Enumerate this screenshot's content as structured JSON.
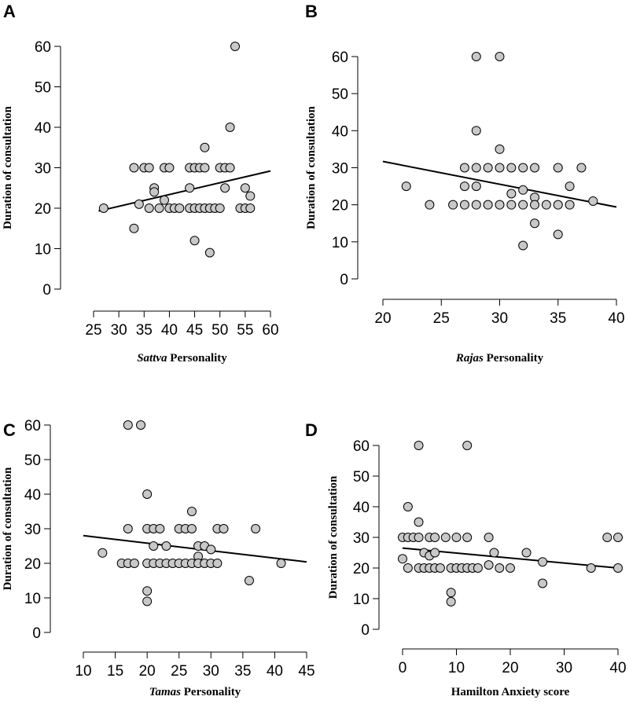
{
  "chart_data": [
    {
      "type": "scatter",
      "panel": "A",
      "xlabel_em": "Sattva",
      "xlabel_rest": " Personality",
      "ylabel": "Duration of consultation",
      "xlim": [
        25,
        60
      ],
      "ylim": [
        0,
        60
      ],
      "xticks": [
        25,
        30,
        35,
        40,
        45,
        50,
        55,
        60
      ],
      "yticks": [
        0,
        10,
        20,
        30,
        40,
        50,
        60
      ],
      "trend": [
        [
          26,
          19.3
        ],
        [
          60,
          29.2
        ]
      ],
      "points": [
        [
          27,
          20
        ],
        [
          33,
          30
        ],
        [
          33,
          15
        ],
        [
          34,
          21
        ],
        [
          35,
          30
        ],
        [
          36,
          30
        ],
        [
          36,
          20
        ],
        [
          37,
          25
        ],
        [
          37,
          24
        ],
        [
          38,
          20
        ],
        [
          39,
          30
        ],
        [
          39,
          22
        ],
        [
          40,
          30
        ],
        [
          40,
          20
        ],
        [
          41,
          20
        ],
        [
          42,
          20
        ],
        [
          44,
          25
        ],
        [
          44,
          20
        ],
        [
          44,
          30
        ],
        [
          45,
          30
        ],
        [
          45,
          20
        ],
        [
          45,
          12
        ],
        [
          46,
          30
        ],
        [
          46,
          20
        ],
        [
          47,
          35
        ],
        [
          47,
          30
        ],
        [
          47,
          20
        ],
        [
          48,
          20
        ],
        [
          48,
          9
        ],
        [
          49,
          20
        ],
        [
          50,
          30
        ],
        [
          50,
          20
        ],
        [
          51,
          30
        ],
        [
          51,
          25
        ],
        [
          52,
          40
        ],
        [
          52,
          30
        ],
        [
          53,
          60
        ],
        [
          54,
          20
        ],
        [
          55,
          25
        ],
        [
          55,
          20
        ],
        [
          56,
          23
        ],
        [
          56,
          20
        ]
      ]
    },
    {
      "type": "scatter",
      "panel": "B",
      "xlabel_em": "Rajas",
      "xlabel_rest": " Personality",
      "ylabel": "Duration of consultation",
      "xlim": [
        20,
        40
      ],
      "ylim": [
        0,
        60
      ],
      "xticks": [
        20,
        25,
        30,
        35,
        40
      ],
      "yticks": [
        0,
        10,
        20,
        30,
        40,
        50,
        60
      ],
      "trend": [
        [
          20,
          31.7
        ],
        [
          40,
          19.4
        ]
      ],
      "points": [
        [
          22,
          25
        ],
        [
          24,
          20
        ],
        [
          26,
          20
        ],
        [
          27,
          30
        ],
        [
          27,
          25
        ],
        [
          27,
          20
        ],
        [
          28,
          60
        ],
        [
          28,
          40
        ],
        [
          28,
          30
        ],
        [
          28,
          25
        ],
        [
          28,
          20
        ],
        [
          29,
          30
        ],
        [
          29,
          20
        ],
        [
          30,
          60
        ],
        [
          30,
          35
        ],
        [
          30,
          30
        ],
        [
          30,
          20
        ],
        [
          31,
          30
        ],
        [
          31,
          23
        ],
        [
          31,
          20
        ],
        [
          32,
          30
        ],
        [
          32,
          24
        ],
        [
          32,
          20
        ],
        [
          32,
          9
        ],
        [
          33,
          30
        ],
        [
          33,
          22
        ],
        [
          33,
          20
        ],
        [
          33,
          15
        ],
        [
          34,
          20
        ],
        [
          35,
          30
        ],
        [
          35,
          20
        ],
        [
          35,
          12
        ],
        [
          36,
          25
        ],
        [
          36,
          20
        ],
        [
          37,
          30
        ],
        [
          38,
          21
        ]
      ]
    },
    {
      "type": "scatter",
      "panel": "C",
      "xlabel_em": "Tamas",
      "xlabel_rest": " Personality",
      "ylabel": "Duration of consultation",
      "xlim": [
        10,
        45
      ],
      "ylim": [
        0,
        60
      ],
      "xticks": [
        10,
        15,
        20,
        25,
        30,
        35,
        40,
        45
      ],
      "yticks": [
        0,
        10,
        20,
        30,
        40,
        50,
        60
      ],
      "trend": [
        [
          10,
          28.0
        ],
        [
          45,
          20.4
        ]
      ],
      "points": [
        [
          13,
          23
        ],
        [
          16,
          20
        ],
        [
          17,
          60
        ],
        [
          17,
          30
        ],
        [
          17,
          20
        ],
        [
          18,
          20
        ],
        [
          19,
          60
        ],
        [
          20,
          40
        ],
        [
          20,
          30
        ],
        [
          20,
          20
        ],
        [
          20,
          12
        ],
        [
          20,
          9
        ],
        [
          21,
          30
        ],
        [
          21,
          25
        ],
        [
          21,
          20
        ],
        [
          22,
          30
        ],
        [
          22,
          20
        ],
        [
          23,
          25
        ],
        [
          23,
          20
        ],
        [
          24,
          20
        ],
        [
          25,
          30
        ],
        [
          25,
          20
        ],
        [
          26,
          30
        ],
        [
          26,
          20
        ],
        [
          27,
          35
        ],
        [
          27,
          30
        ],
        [
          27,
          20
        ],
        [
          28,
          25
        ],
        [
          28,
          22
        ],
        [
          28,
          20
        ],
        [
          29,
          25
        ],
        [
          29,
          20
        ],
        [
          30,
          24
        ],
        [
          30,
          20
        ],
        [
          31,
          30
        ],
        [
          31,
          20
        ],
        [
          32,
          30
        ],
        [
          36,
          15
        ],
        [
          37,
          30
        ],
        [
          41,
          20
        ]
      ]
    },
    {
      "type": "scatter",
      "panel": "D",
      "xlabel_em": "",
      "xlabel_rest": "Hamilton Anxiety score",
      "ylabel": "Duration of consultation",
      "xlim": [
        0,
        40
      ],
      "ylim": [
        0,
        60
      ],
      "xticks": [
        0,
        10,
        20,
        30,
        40
      ],
      "yticks": [
        0,
        10,
        20,
        30,
        40,
        50,
        60
      ],
      "trend": [
        [
          0,
          26.5
        ],
        [
          40,
          20.0
        ]
      ],
      "points": [
        [
          0,
          30
        ],
        [
          0,
          23
        ],
        [
          1,
          40
        ],
        [
          1,
          30
        ],
        [
          1,
          20
        ],
        [
          2,
          30
        ],
        [
          3,
          60
        ],
        [
          3,
          35
        ],
        [
          3,
          30
        ],
        [
          3,
          20
        ],
        [
          4,
          25
        ],
        [
          4,
          20
        ],
        [
          5,
          30
        ],
        [
          5,
          24
        ],
        [
          5,
          20
        ],
        [
          6,
          30
        ],
        [
          6,
          25
        ],
        [
          6,
          20
        ],
        [
          7,
          20
        ],
        [
          8,
          30
        ],
        [
          9,
          20
        ],
        [
          9,
          12
        ],
        [
          9,
          9
        ],
        [
          10,
          30
        ],
        [
          10,
          20
        ],
        [
          11,
          20
        ],
        [
          12,
          60
        ],
        [
          12,
          30
        ],
        [
          12,
          20
        ],
        [
          13,
          20
        ],
        [
          14,
          20
        ],
        [
          16,
          30
        ],
        [
          16,
          21
        ],
        [
          17,
          25
        ],
        [
          18,
          20
        ],
        [
          20,
          20
        ],
        [
          23,
          25
        ],
        [
          26,
          22
        ],
        [
          26,
          15
        ],
        [
          35,
          20
        ],
        [
          38,
          30
        ],
        [
          40,
          30
        ],
        [
          40,
          20
        ]
      ]
    }
  ]
}
